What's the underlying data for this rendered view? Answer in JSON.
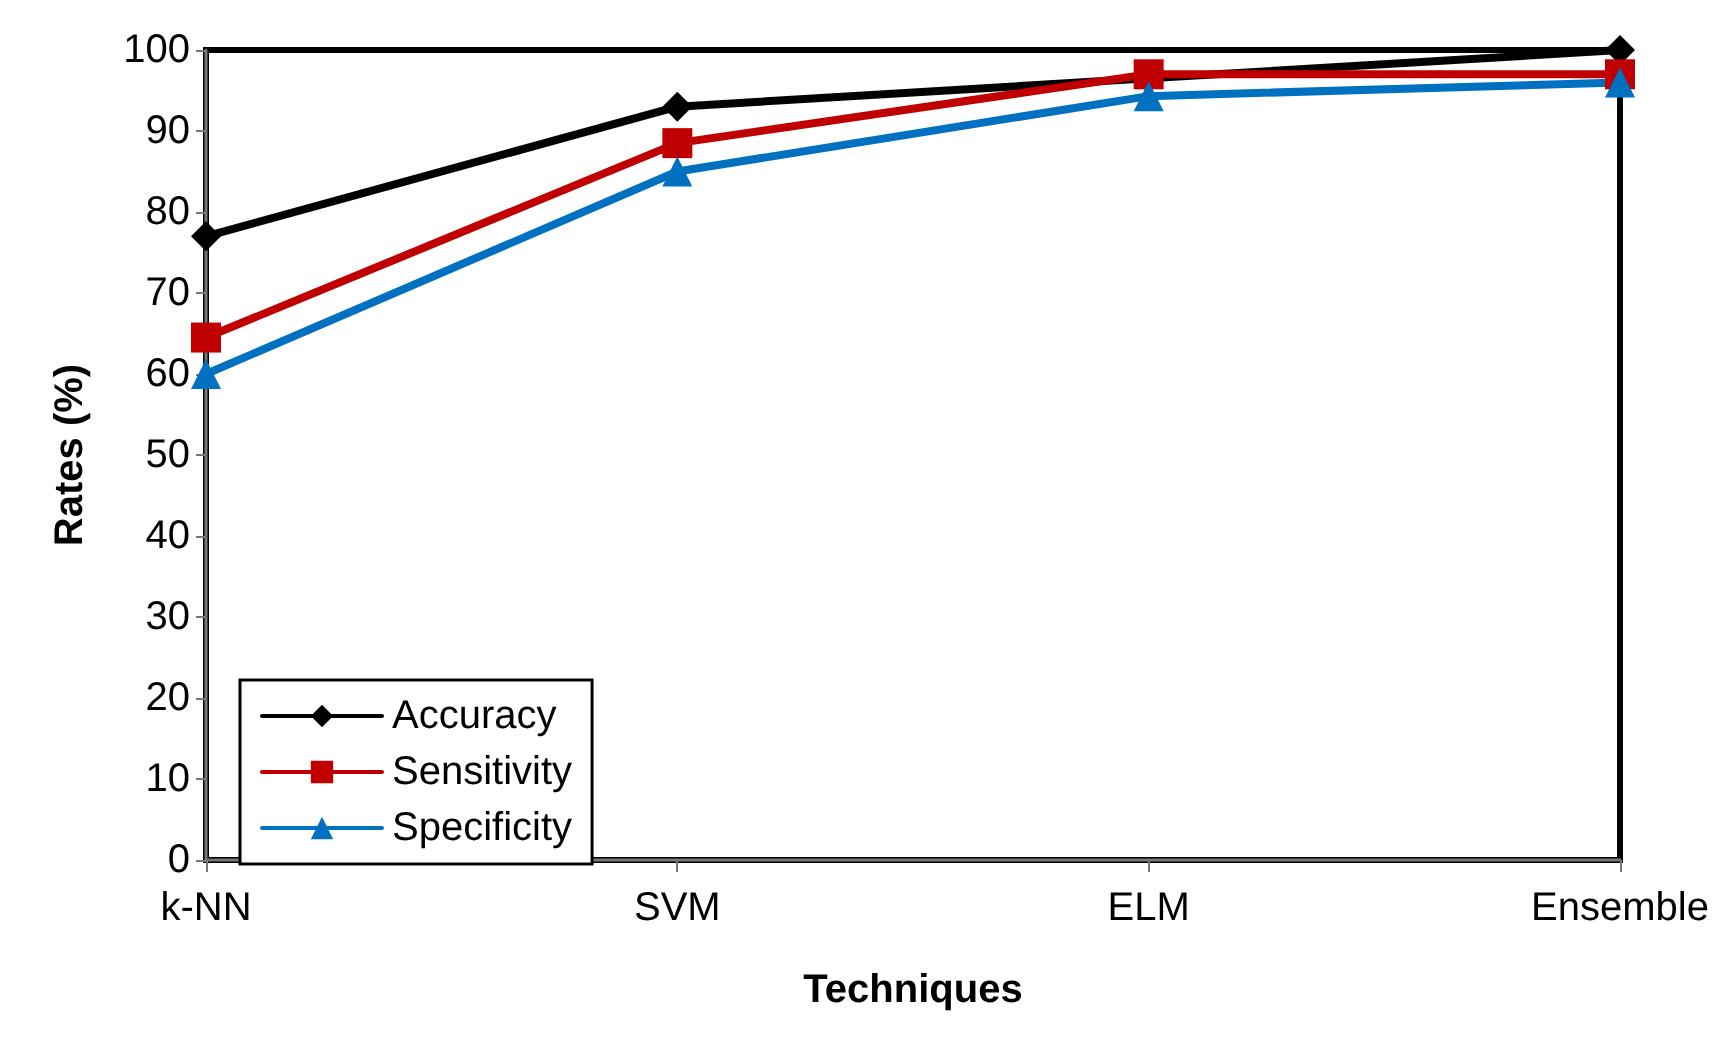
{
  "chart_data": {
    "type": "line",
    "xlabel": "Techniques",
    "ylabel": "Rates (%)",
    "categories": [
      "k-NN",
      "SVM",
      "ELM",
      "Ensemble"
    ],
    "series": [
      {
        "name": "Accuracy",
        "color": "#000000",
        "marker": "diamond",
        "values": [
          77,
          93,
          96.5,
          100
        ]
      },
      {
        "name": "Sensitivity",
        "color": "#c00000",
        "marker": "square",
        "values": [
          64.5,
          88.5,
          97,
          97
        ]
      },
      {
        "name": "Specificity",
        "color": "#0070c0",
        "marker": "triangle",
        "values": [
          60,
          85,
          94.3,
          96
        ]
      }
    ],
    "ylim": [
      0,
      100
    ],
    "yticks": [
      0,
      10,
      20,
      30,
      40,
      50,
      60,
      70,
      80,
      90,
      100
    ],
    "grid": false,
    "legend": "bottom left",
    "line_style": "solid"
  }
}
